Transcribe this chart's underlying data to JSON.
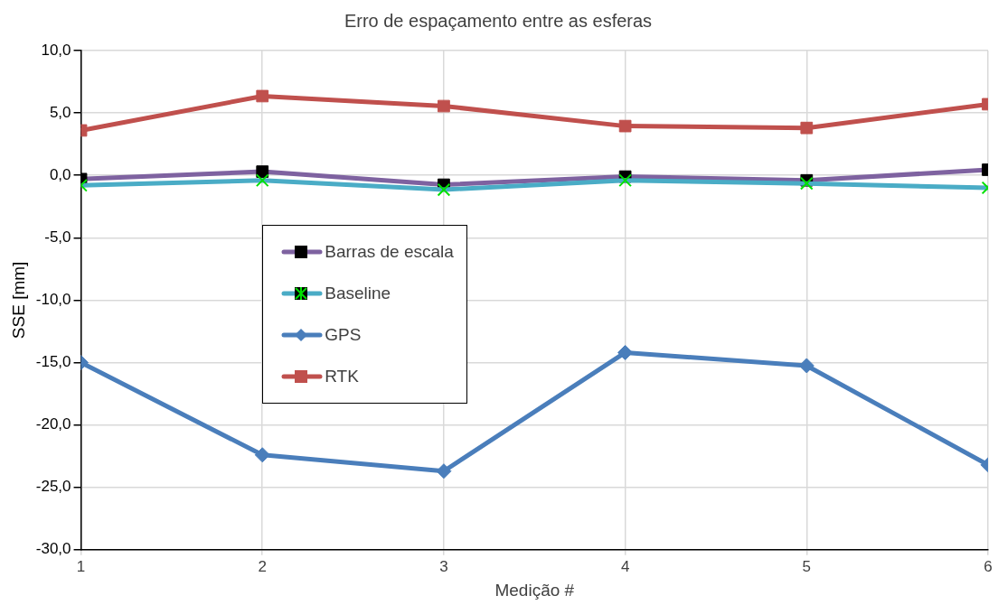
{
  "chart_data": {
    "type": "line",
    "title": "Erro de espaçamento entre as esferas",
    "xlabel": "Medição #",
    "ylabel": "SSE [mm]",
    "x": [
      1,
      2,
      3,
      4,
      5,
      6
    ],
    "xlim": [
      1,
      6
    ],
    "xticks": [
      1,
      2,
      3,
      4,
      5,
      6
    ],
    "ylim": [
      -30,
      10
    ],
    "yticks": [
      {
        "value": -30,
        "label": "-30,0"
      },
      {
        "value": -25,
        "label": "-25,0"
      },
      {
        "value": -20,
        "label": "-20,0"
      },
      {
        "value": -15,
        "label": "-15,0"
      },
      {
        "value": -10,
        "label": "-10,0"
      },
      {
        "value": -5,
        "label": "-5,0"
      },
      {
        "value": 0,
        "label": "0,0"
      },
      {
        "value": 5,
        "label": "5,0"
      },
      {
        "value": 10,
        "label": "10,0"
      }
    ],
    "grid": true,
    "legend": "left",
    "line_style": "solid",
    "series": [
      {
        "name": "Barras de escala",
        "color": "#7e62a0",
        "marker": "square",
        "values": [
          -0.3,
          0.3,
          -0.75,
          -0.1,
          -0.4,
          0.45
        ]
      },
      {
        "name": "Baseline",
        "color": "#4aacc6",
        "marker": "cross",
        "values": [
          -0.8,
          -0.4,
          -1.15,
          -0.4,
          -0.65,
          -1.0
        ]
      },
      {
        "name": "GPS",
        "color": "#4a7ebb",
        "marker": "diamond",
        "values": [
          -15.0,
          -22.4,
          -23.7,
          -14.2,
          -15.25,
          -23.2
        ]
      },
      {
        "name": "RTK",
        "color": "#c0504d",
        "marker": "square",
        "values": [
          3.6,
          6.35,
          5.55,
          3.95,
          3.8,
          5.7
        ]
      }
    ]
  }
}
